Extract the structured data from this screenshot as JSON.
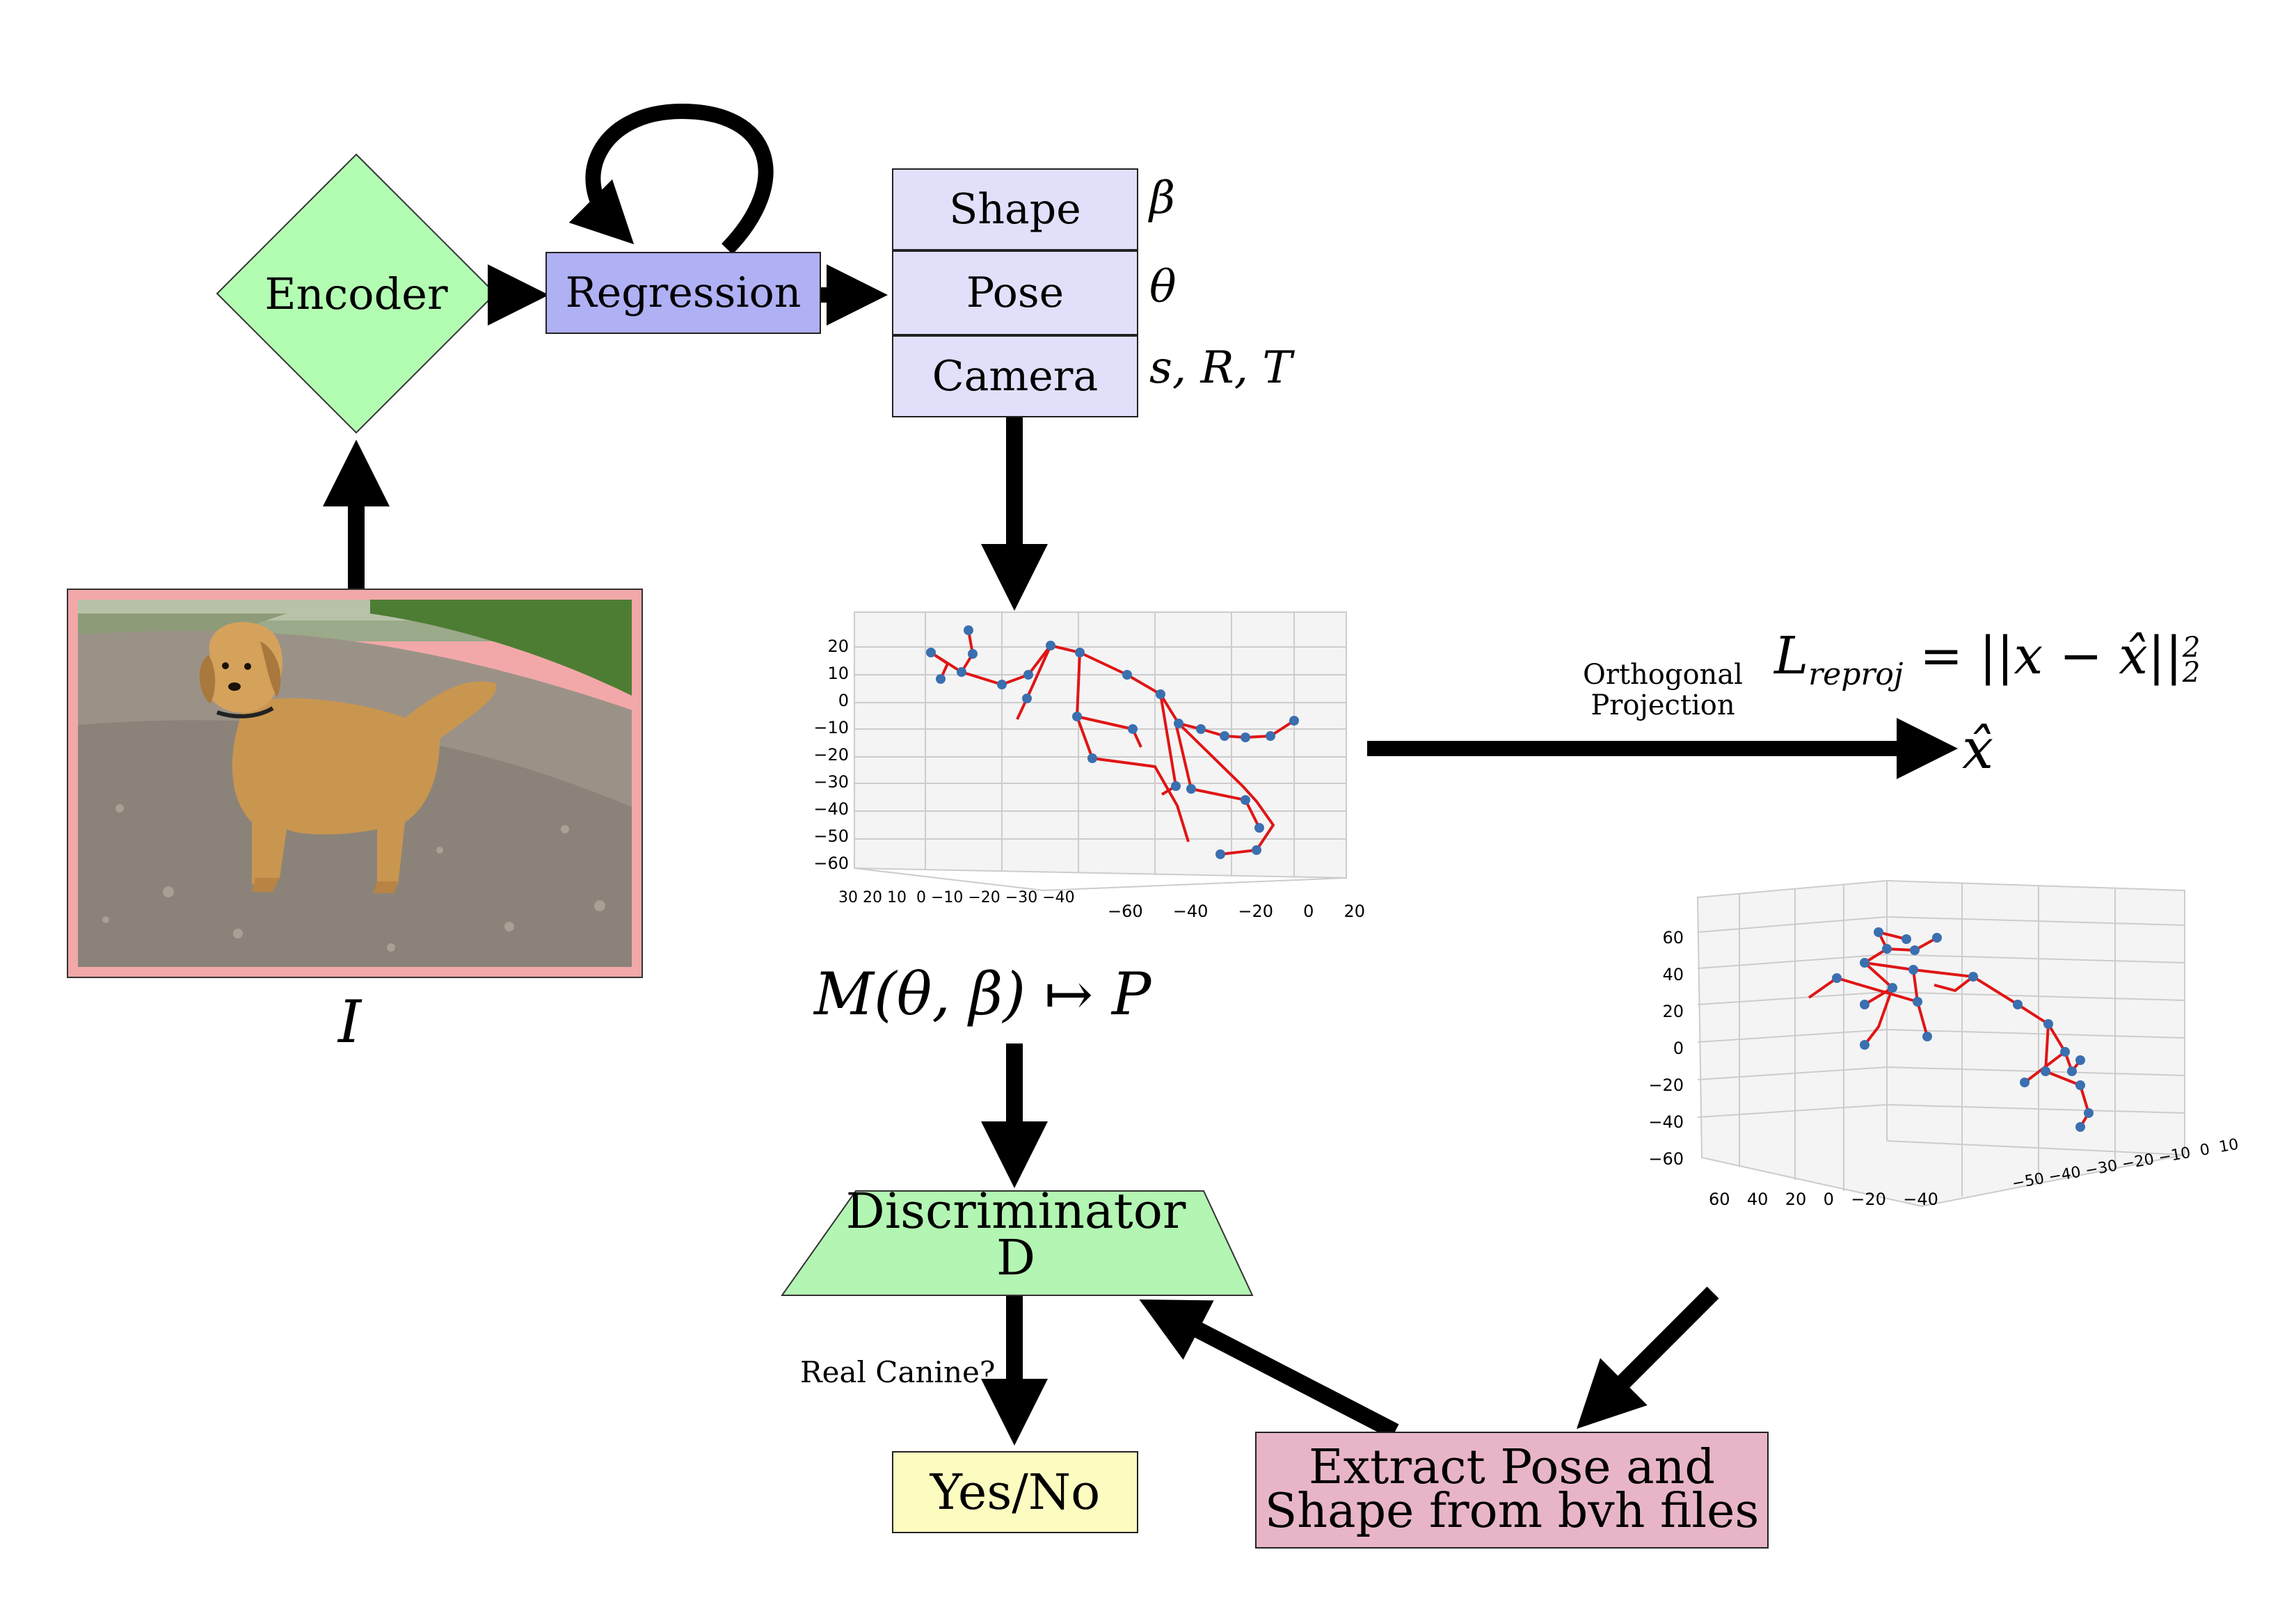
{
  "encoder": {
    "label": "Encoder"
  },
  "regression": {
    "label": "Regression"
  },
  "params": {
    "shape_label": "Shape",
    "shape_symbol": "β",
    "pose_label": "Pose",
    "pose_symbol": "θ",
    "camera_label": "Camera",
    "camera_symbol": "s, R, T"
  },
  "image": {
    "symbol": "I"
  },
  "model_eq": "M(θ, β) ↦ P",
  "projection": {
    "label_line1": "Orthogonal",
    "label_line2": "Projection",
    "loss": "L",
    "loss_sub": "reproj",
    "loss_rhs": " = ||x − x̂||",
    "loss_sup": "2",
    "loss_sub2": "2",
    "output": "x̂"
  },
  "discriminator": {
    "label_line1": "Discriminator",
    "label_line2": "D"
  },
  "decision": {
    "question": "Real Canine?",
    "answer": "Yes/No"
  },
  "extract": {
    "line1": "Extract Pose and",
    "line2": "Shape from bvh files"
  },
  "plot_top": {
    "y_ticks": [
      "20",
      "10",
      "0",
      "−10",
      "−20",
      "−30",
      "−40",
      "−50",
      "−60"
    ],
    "x_ticks_left": "30 20 10  0 −10 −20 −30 −40",
    "x_ticks_right": [
      "−60",
      "−40",
      "−20",
      "0",
      "20"
    ]
  },
  "plot_right": {
    "y_ticks": [
      "60",
      "40",
      "20",
      "0",
      "−20",
      "−40",
      "−60"
    ],
    "x_ticks_left": [
      "60",
      "40",
      "20",
      "0",
      "−20",
      "−40"
    ],
    "x_ticks_right": "−50 −40 −30 −20 −10  0  10"
  },
  "colors": {
    "encoder": "#b3fdb3",
    "regression": "#b0b0f5",
    "params": "#e0e0fb",
    "discriminator": "#b3f5b3",
    "yesno": "#fdfcc0",
    "extract": "#e8b5c8",
    "photo_frame": "#f2a8a8",
    "skeleton_line": "#e01515",
    "skeleton_joint": "#3a6fb0"
  }
}
